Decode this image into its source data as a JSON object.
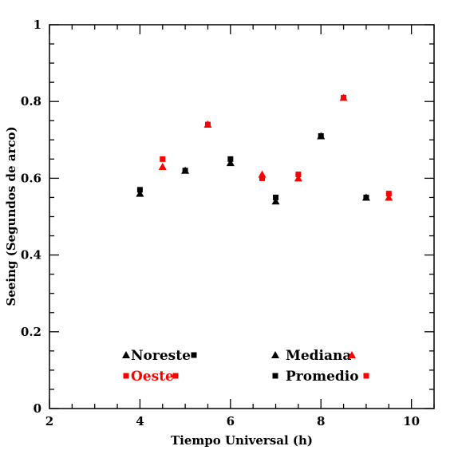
{
  "chart_data": {
    "type": "scatter",
    "title": "",
    "xlabel": "Tiempo Universal (h)",
    "ylabel": "Seeing (Segundos de arco)",
    "xlim": [
      2,
      10.5
    ],
    "ylim": [
      0,
      1
    ],
    "x_ticks": [
      "2",
      "4",
      "6",
      "8",
      "10"
    ],
    "y_ticks": [
      "0",
      "0.2",
      "0.4",
      "0.6",
      "0.8",
      "1"
    ],
    "grid": false,
    "series": [
      {
        "name": "Noreste Mediana",
        "color": "#000000",
        "marker": "triangle",
        "x": [
          4,
          5,
          6,
          7,
          8,
          9
        ],
        "y": [
          0.56,
          0.62,
          0.64,
          0.54,
          0.71,
          0.55
        ]
      },
      {
        "name": "Noreste Promedio",
        "color": "#000000",
        "marker": "square",
        "x": [
          4,
          5,
          6,
          7,
          8,
          9
        ],
        "y": [
          0.57,
          0.62,
          0.65,
          0.55,
          0.71,
          0.55
        ]
      },
      {
        "name": "Oeste Mediana",
        "color": "#ff0000",
        "marker": "triangle",
        "x": [
          4.5,
          5.5,
          6.7,
          7.5,
          8.5,
          9.5
        ],
        "y": [
          0.63,
          0.74,
          0.61,
          0.6,
          0.81,
          0.55
        ]
      },
      {
        "name": "Oeste Promedio",
        "color": "#ff0000",
        "marker": "square",
        "x": [
          4.5,
          5.5,
          6.7,
          7.5,
          8.5,
          9.5
        ],
        "y": [
          0.65,
          0.74,
          0.6,
          0.61,
          0.81,
          0.56
        ]
      }
    ],
    "legend": {
      "placement": "bottom",
      "site_labels": [
        {
          "text": "Noreste",
          "color": "#000000"
        },
        {
          "text": "Oeste",
          "color": "#ff0000"
        }
      ],
      "stat_labels": [
        {
          "text": "Mediana",
          "marker": "triangle"
        },
        {
          "text": "Promedio",
          "marker": "square"
        }
      ]
    }
  }
}
